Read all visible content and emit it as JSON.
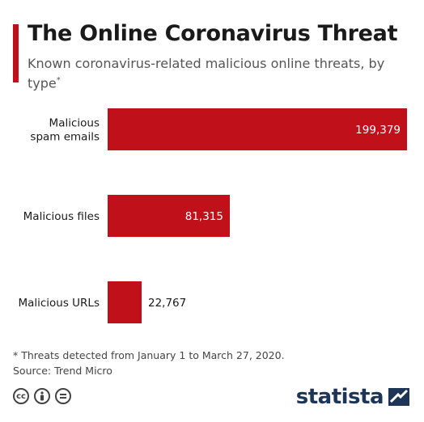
{
  "header": {
    "title": "The Online Coronavirus Threat",
    "subtitle": "Known coronavirus-related malicious online threats, by type",
    "subtitle_mark": "*"
  },
  "chart_data": {
    "type": "bar",
    "orientation": "horizontal",
    "categories": [
      "Malicious spam emails",
      "Malicious files",
      "Malicious URLs"
    ],
    "values": [
      199379,
      81315,
      22767
    ],
    "value_labels": [
      "199,379",
      "81,315",
      "22,767"
    ],
    "xlim": [
      0,
      199379
    ],
    "bar_color": "#c0111a",
    "grid": false
  },
  "footer": {
    "note": "* Threats detected from January 1 to March 27, 2020.",
    "source": "Source: Trend Micro",
    "cc_icons": [
      "cc-icon",
      "attribution-icon",
      "no-derivatives-icon"
    ],
    "brand": "statista"
  }
}
